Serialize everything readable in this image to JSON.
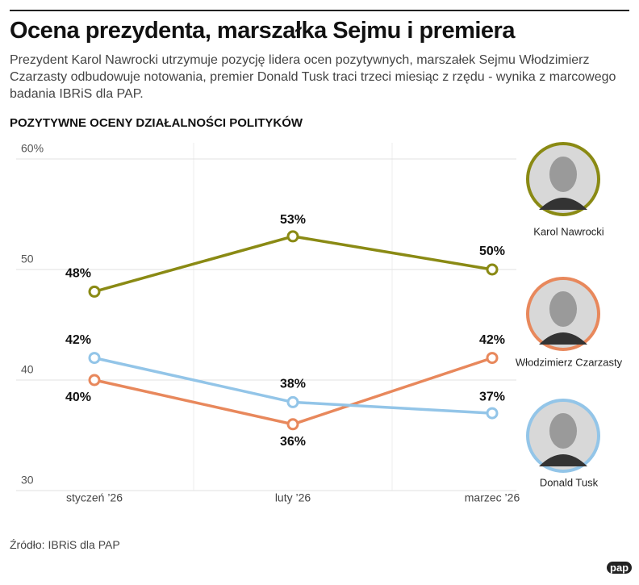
{
  "chart_data": {
    "type": "line",
    "title": "Ocena prezydenta, marszałka Sejmu i premiera",
    "subtitle": "Prezydent Karol Nawrocki utrzymuje pozycję lidera ocen pozytywnych, marszałek Sejmu Włodzimierz Czarzasty odbudowuje notowania, premier Donald Tusk traci trzeci miesiąc z rzędu - wynika z marcowego badania IBRiS dla PAP.",
    "chart_title": "POZYTYWNE OCENY DZIAŁALNOŚCI POLITYKÓW",
    "categories": [
      "styczeń ’26",
      "luty ’26",
      "marzec ’26"
    ],
    "series": [
      {
        "name": "Karol Nawrocki",
        "color": "#8a8a14",
        "values": [
          48,
          53,
          50
        ],
        "value_labels": [
          "48%",
          "53%",
          "50%"
        ]
      },
      {
        "name": "Włodzimierz Czarzasty",
        "color": "#e8885c",
        "values": [
          40,
          36,
          42
        ],
        "value_labels": [
          "40%",
          "36%",
          "42%"
        ]
      },
      {
        "name": "Donald Tusk",
        "color": "#93c5e8",
        "values": [
          42,
          38,
          37
        ],
        "value_labels": [
          "42%",
          "38%",
          "37%"
        ]
      }
    ],
    "ylim": [
      30,
      60
    ],
    "yticks": [
      30,
      40,
      50,
      {
        "value": 60,
        "label": "60%"
      }
    ],
    "grid": true,
    "source": "Źródło: IBRiS dla PAP",
    "logo": "pap"
  }
}
